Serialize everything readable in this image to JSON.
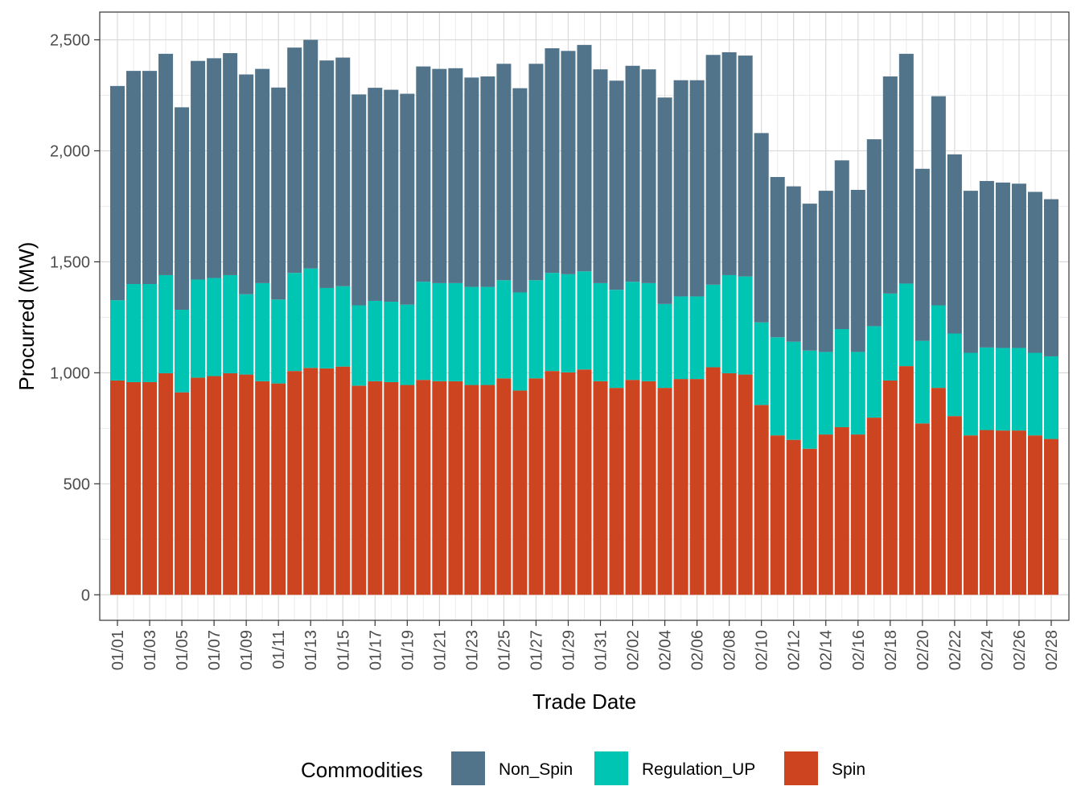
{
  "chart_data": {
    "type": "bar",
    "stacked": true,
    "title": "",
    "xlabel": "Trade Date",
    "ylabel": "Procurred (MW)",
    "ylim": [
      -115,
      2625
    ],
    "y_ticks": [
      0,
      500,
      1000,
      1500,
      2000,
      2500
    ],
    "y_tick_labels": [
      "0",
      "500",
      "1,000",
      "1,500",
      "2,000",
      "2,500"
    ],
    "grid": true,
    "legend_title": "Commodities",
    "legend_position": "bottom",
    "categories": [
      "01/01",
      "01/02",
      "01/03",
      "01/04",
      "01/05",
      "01/06",
      "01/07",
      "01/08",
      "01/09",
      "01/10",
      "01/11",
      "01/12",
      "01/13",
      "01/14",
      "01/15",
      "01/16",
      "01/17",
      "01/18",
      "01/19",
      "01/20",
      "01/21",
      "01/22",
      "01/23",
      "01/24",
      "01/25",
      "01/26",
      "01/27",
      "01/28",
      "01/29",
      "01/30",
      "01/31",
      "02/01",
      "02/02",
      "02/03",
      "02/04",
      "02/05",
      "02/06",
      "02/07",
      "02/08",
      "02/09",
      "02/10",
      "02/11",
      "02/12",
      "02/13",
      "02/14",
      "02/15",
      "02/16",
      "02/17",
      "02/18",
      "02/19",
      "02/20",
      "02/21",
      "02/22",
      "02/23",
      "02/24",
      "02/25",
      "02/26",
      "02/27",
      "02/28"
    ],
    "tick_labels_shown": [
      "01/01",
      "01/03",
      "01/05",
      "01/07",
      "01/09",
      "01/11",
      "01/13",
      "01/15",
      "01/17",
      "01/19",
      "01/21",
      "01/23",
      "01/25",
      "01/27",
      "01/29",
      "01/31",
      "02/02",
      "02/04",
      "02/06",
      "02/08",
      "02/10",
      "02/12",
      "02/14",
      "02/16",
      "02/18",
      "02/20",
      "02/22",
      "02/24",
      "02/26",
      "02/28"
    ],
    "series": [
      {
        "name": "Spin",
        "color": "#CD4520",
        "values": [
          965,
          958,
          958,
          998,
          912,
          978,
          985,
          998,
          992,
          962,
          952,
          1008,
          1022,
          1020,
          1028,
          942,
          962,
          958,
          945,
          968,
          962,
          962,
          945,
          945,
          975,
          920,
          975,
          1008,
          1002,
          1015,
          962,
          932,
          968,
          962,
          932,
          972,
          972,
          1025,
          998,
          992,
          855,
          718,
          698,
          658,
          722,
          755,
          722,
          798,
          965,
          1030,
          772,
          932,
          805,
          718,
          742,
          740,
          740,
          718,
          702
        ]
      },
      {
        "name": "Regulation_UP",
        "color": "#00C5B2",
        "values": [
          362,
          442,
          442,
          442,
          372,
          442,
          442,
          442,
          362,
          442,
          378,
          442,
          448,
          362,
          362,
          362,
          362,
          362,
          362,
          442,
          442,
          442,
          442,
          442,
          442,
          442,
          442,
          442,
          442,
          442,
          442,
          442,
          442,
          442,
          378,
          372,
          372,
          372,
          442,
          442,
          372,
          442,
          442,
          442,
          372,
          442,
          372,
          412,
          392,
          372,
          372,
          372,
          372,
          372,
          372,
          372,
          372,
          372,
          372
        ]
      },
      {
        "name": "Non_Spin",
        "color": "#51748A",
        "values": [
          965,
          960,
          960,
          997,
          912,
          985,
          990,
          1000,
          990,
          965,
          955,
          1015,
          1030,
          1025,
          1030,
          950,
          960,
          955,
          950,
          970,
          965,
          968,
          943,
          948,
          975,
          920,
          975,
          1012,
          1006,
          1020,
          963,
          942,
          973,
          963,
          930,
          974,
          974,
          1035,
          1004,
          995,
          853,
          722,
          700,
          662,
          726,
          760,
          730,
          842,
          978,
          1035,
          775,
          942,
          807,
          730,
          750,
          745,
          740,
          725,
          708
        ]
      }
    ]
  }
}
